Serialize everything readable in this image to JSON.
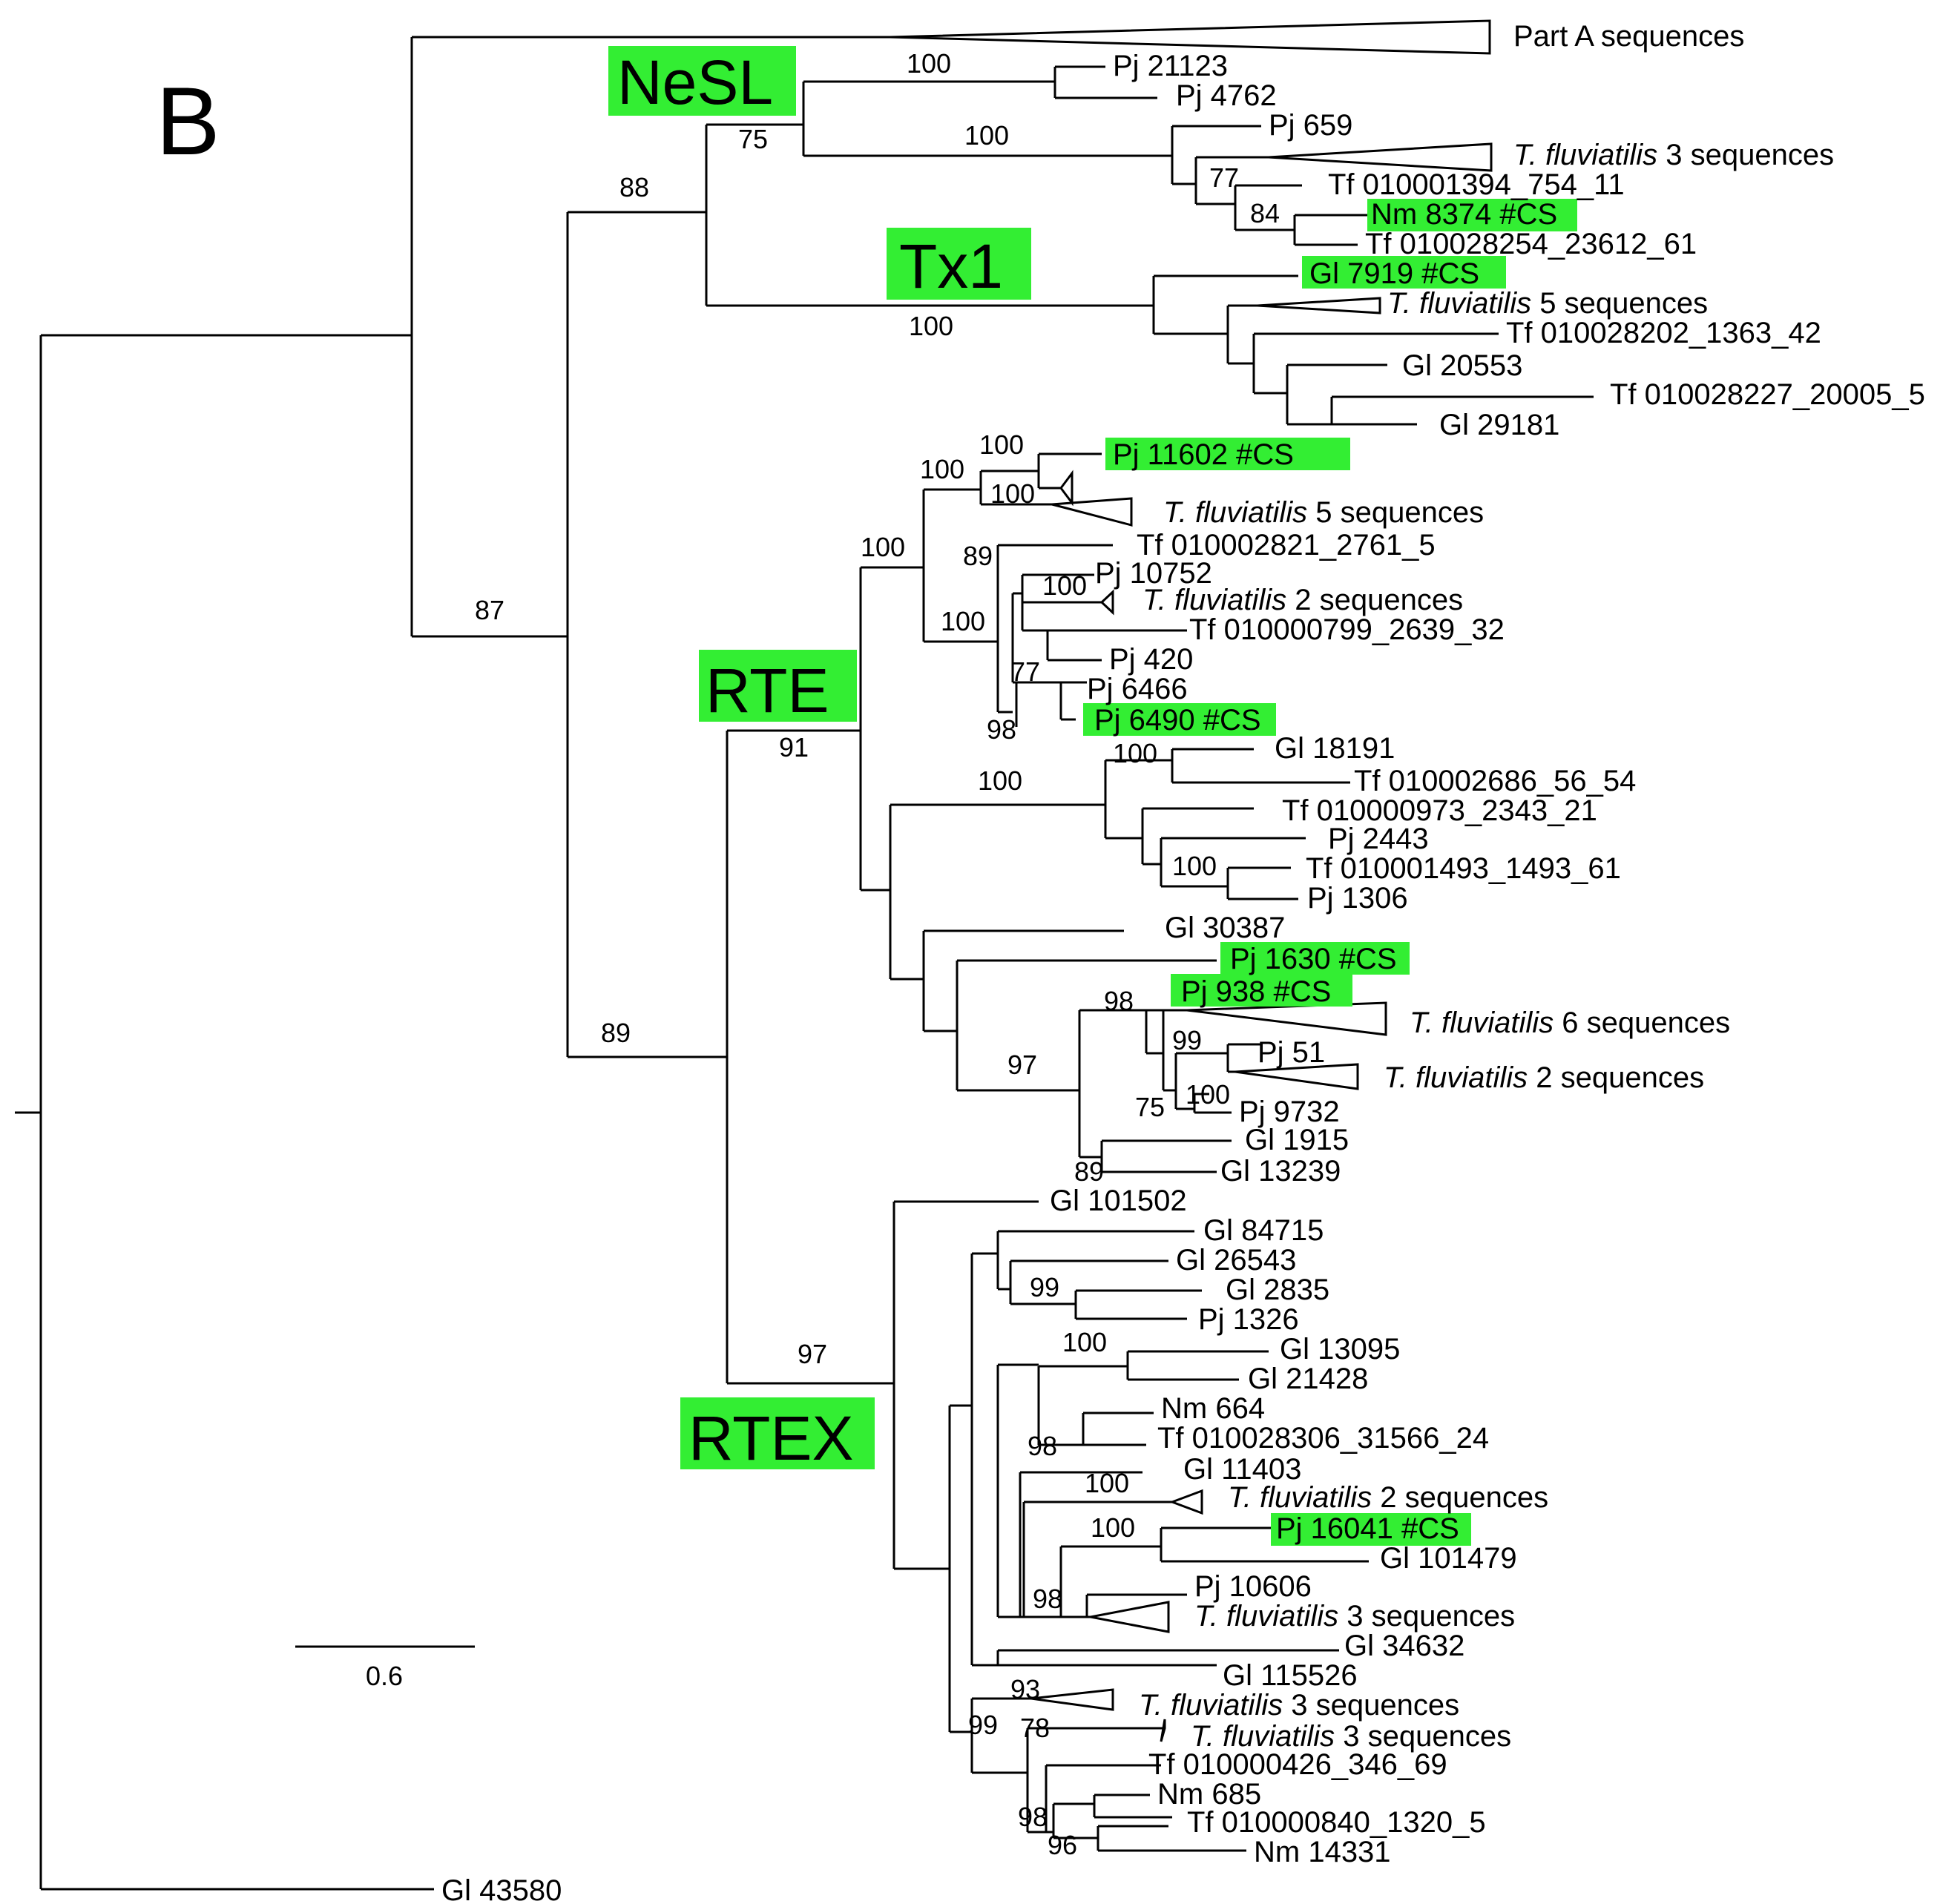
{
  "panel_label": "B",
  "colors": {
    "highlight": "#33ee33",
    "line": "#000000",
    "background": "#ffffff"
  },
  "clades": {
    "nesl": "NeSL",
    "tx1": "Tx1",
    "rte": "RTE",
    "rtex": "RTEX"
  },
  "scale_bar": {
    "value": "0.6"
  },
  "suffix": " sequences",
  "species": "T. fluviatilis",
  "taxa": {
    "part_a": "Part A sequences",
    "pj21123": "Pj 21123",
    "pj4762": "Pj 4762",
    "pj659": "Pj 659",
    "tf_1394": "Tf 010001394_754_11",
    "nm8374": "Nm 8374 #CS",
    "tf_28254": "Tf 010028254_23612_61",
    "gl7919": "Gl 7919 #CS",
    "tf_28202": "Tf 010028202_1363_42",
    "gl20553": "Gl 20553",
    "tf_28227": "Tf 010028227_20005_5",
    "gl29181": "Gl 29181",
    "pj11602": "Pj 11602 #CS",
    "tf_2821": "Tf 010002821_2761_5",
    "pj10752": "Pj 10752",
    "tf_799": "Tf 010000799_2639_32",
    "pj420": "Pj 420",
    "pj6466": "Pj 6466",
    "pj6490": "Pj 6490 #CS",
    "gl18191": "Gl 18191",
    "tf_2686": "Tf 010002686_56_54",
    "tf_973": "Tf 010000973_2343_21",
    "pj2443": "Pj 2443",
    "tf_1493": "Tf 010001493_1493_61",
    "pj1306": "Pj 1306",
    "gl30387": "Gl 30387",
    "pj1630": "Pj 1630 #CS",
    "pj938": "Pj 938 #CS",
    "pj51": "Pj 51",
    "pj9732": "Pj 9732",
    "gl1915": "Gl 1915",
    "gl13239": "Gl 13239",
    "gl101502": "Gl 101502",
    "gl84715": "Gl 84715",
    "gl26543": "Gl 26543",
    "gl2835": "Gl 2835",
    "pj1326": "Pj 1326",
    "gl13095": "Gl 13095",
    "gl21428": "Gl 21428",
    "nm664": "Nm 664",
    "tf_28306": "Tf 010028306_31566_24",
    "gl11403": "Gl 11403",
    "pj16041": "Pj 16041 #CS",
    "gl101479": "Gl 101479",
    "pj10606": "Pj 10606",
    "gl34632": "Gl 34632",
    "gl115526": "Gl 115526",
    "tf_426": "Tf 010000426_346_69",
    "nm685": "Nm 685",
    "tf_840": "Tf 010000840_1320_5",
    "nm14331": "Nm 14331",
    "gl43580": "Gl 43580"
  },
  "collapsed": {
    "tflu3_a": {
      "count": "3"
    },
    "tflu5_a": {
      "count": "5"
    },
    "tflu5_b": {
      "count": "5"
    },
    "tflu2_a": {
      "count": "2"
    },
    "tflu6": {
      "count": "6"
    },
    "tflu2_b": {
      "count": "2"
    },
    "tflu2_c": {
      "count": "2"
    },
    "tflu3_b": {
      "count": "3"
    },
    "tflu3_c": {
      "count": "3"
    },
    "tflu3_d": {
      "count": "3"
    }
  },
  "bootstrap": {
    "b87": "87",
    "b88": "88",
    "b75a": "75",
    "b100_nesl": "100",
    "b100_pj659": "100",
    "b77a": "77",
    "b84": "84",
    "b100_tx1": "100",
    "b89_rte": "89",
    "b91": "91",
    "b100_r1": "100",
    "b100_r2": "100",
    "b100_r3": "100",
    "b100_r4": "100",
    "b89_r5": "89",
    "b100_r6": "100",
    "b100_r7": "100",
    "b77_r8": "77",
    "b98_r9": "98",
    "b100_g1": "100",
    "b100_g2": "100",
    "b100_g3": "100",
    "b98_g4": "98",
    "b97_g5": "97",
    "b99_g6": "99",
    "b75_g7": "75",
    "b100_g8": "100",
    "b89_g9": "89",
    "b97_rtex": "97",
    "b99_x1": "99",
    "b100_x2": "100",
    "b98_x3": "98",
    "b100_x4": "100",
    "b100_x5": "100",
    "b98_x6": "98",
    "b93_x7": "93",
    "b99_x8": "99",
    "b78_x9": "78",
    "b98_x10": "98",
    "b96_x11": "96"
  }
}
